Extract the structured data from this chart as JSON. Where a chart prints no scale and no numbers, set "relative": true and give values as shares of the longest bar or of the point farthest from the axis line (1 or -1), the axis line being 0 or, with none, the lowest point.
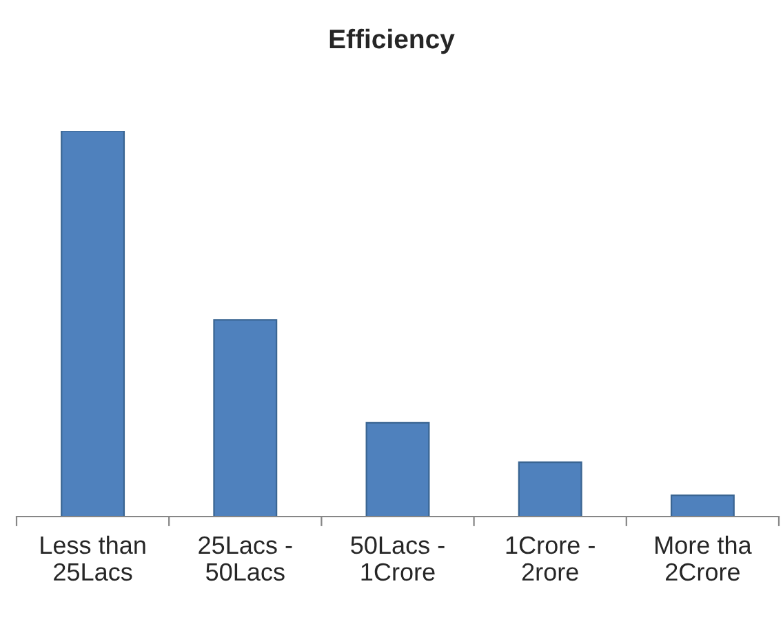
{
  "chart_data": {
    "type": "bar",
    "title": "Efficiency",
    "relative": true,
    "categories": [
      "Less than\n25Lacs",
      "25Lacs -\n50Lacs",
      "50Lacs -\n1Crore",
      "1Crore -\n2rore",
      "More tha\n2Crore"
    ],
    "values": [
      1,
      0.51,
      0.243,
      0.141,
      0.055
    ],
    "color": "#4f81bd",
    "grid": false,
    "legend": false
  }
}
